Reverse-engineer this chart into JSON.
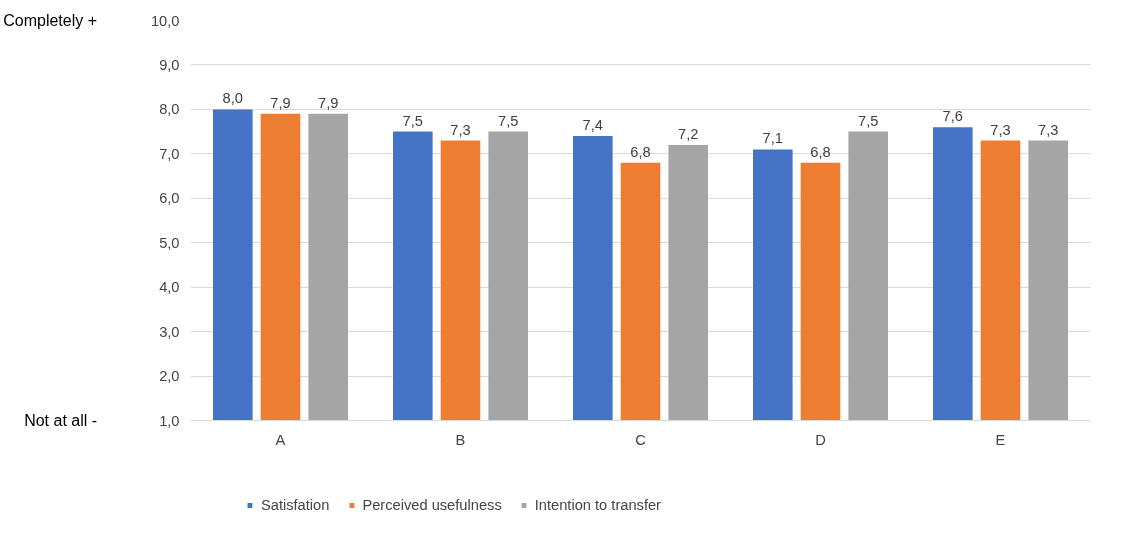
{
  "chart_data": {
    "type": "bar",
    "categories": [
      "A",
      "B",
      "C",
      "D",
      "E"
    ],
    "series": [
      {
        "name": "Satisfation",
        "color": "#4472c4",
        "values": [
          8.0,
          7.5,
          7.4,
          7.1,
          7.6
        ],
        "value_labels": [
          "8,0",
          "7,5",
          "7,4",
          "7,1",
          "7,6"
        ]
      },
      {
        "name": "Perceived usefulness",
        "color": "#ed7d31",
        "values": [
          7.9,
          7.3,
          6.8,
          6.8,
          7.3
        ],
        "value_labels": [
          "7,9",
          "7,3",
          "6,8",
          "6,8",
          "7,3"
        ]
      },
      {
        "name": "Intention to transfer",
        "color": "#a5a5a5",
        "values": [
          7.9,
          7.5,
          7.2,
          7.5,
          7.3
        ],
        "value_labels": [
          "7,9",
          "7,5",
          "7,2",
          "7,5",
          "7,3"
        ]
      }
    ],
    "ylim": [
      1,
      10
    ],
    "yticks": [
      {
        "value": 1,
        "label": "1,0"
      },
      {
        "value": 2,
        "label": "2,0"
      },
      {
        "value": 3,
        "label": "3,0"
      },
      {
        "value": 4,
        "label": "4,0"
      },
      {
        "value": 5,
        "label": "5,0"
      },
      {
        "value": 6,
        "label": "6,0"
      },
      {
        "value": 7,
        "label": "7,0"
      },
      {
        "value": 8,
        "label": "8,0"
      },
      {
        "value": 9,
        "label": "9,0"
      },
      {
        "value": 10,
        "label": "10,0"
      }
    ],
    "annotations": [
      "Completely  +",
      "Not at all  -"
    ],
    "grid": "y",
    "legend": "bottom"
  }
}
